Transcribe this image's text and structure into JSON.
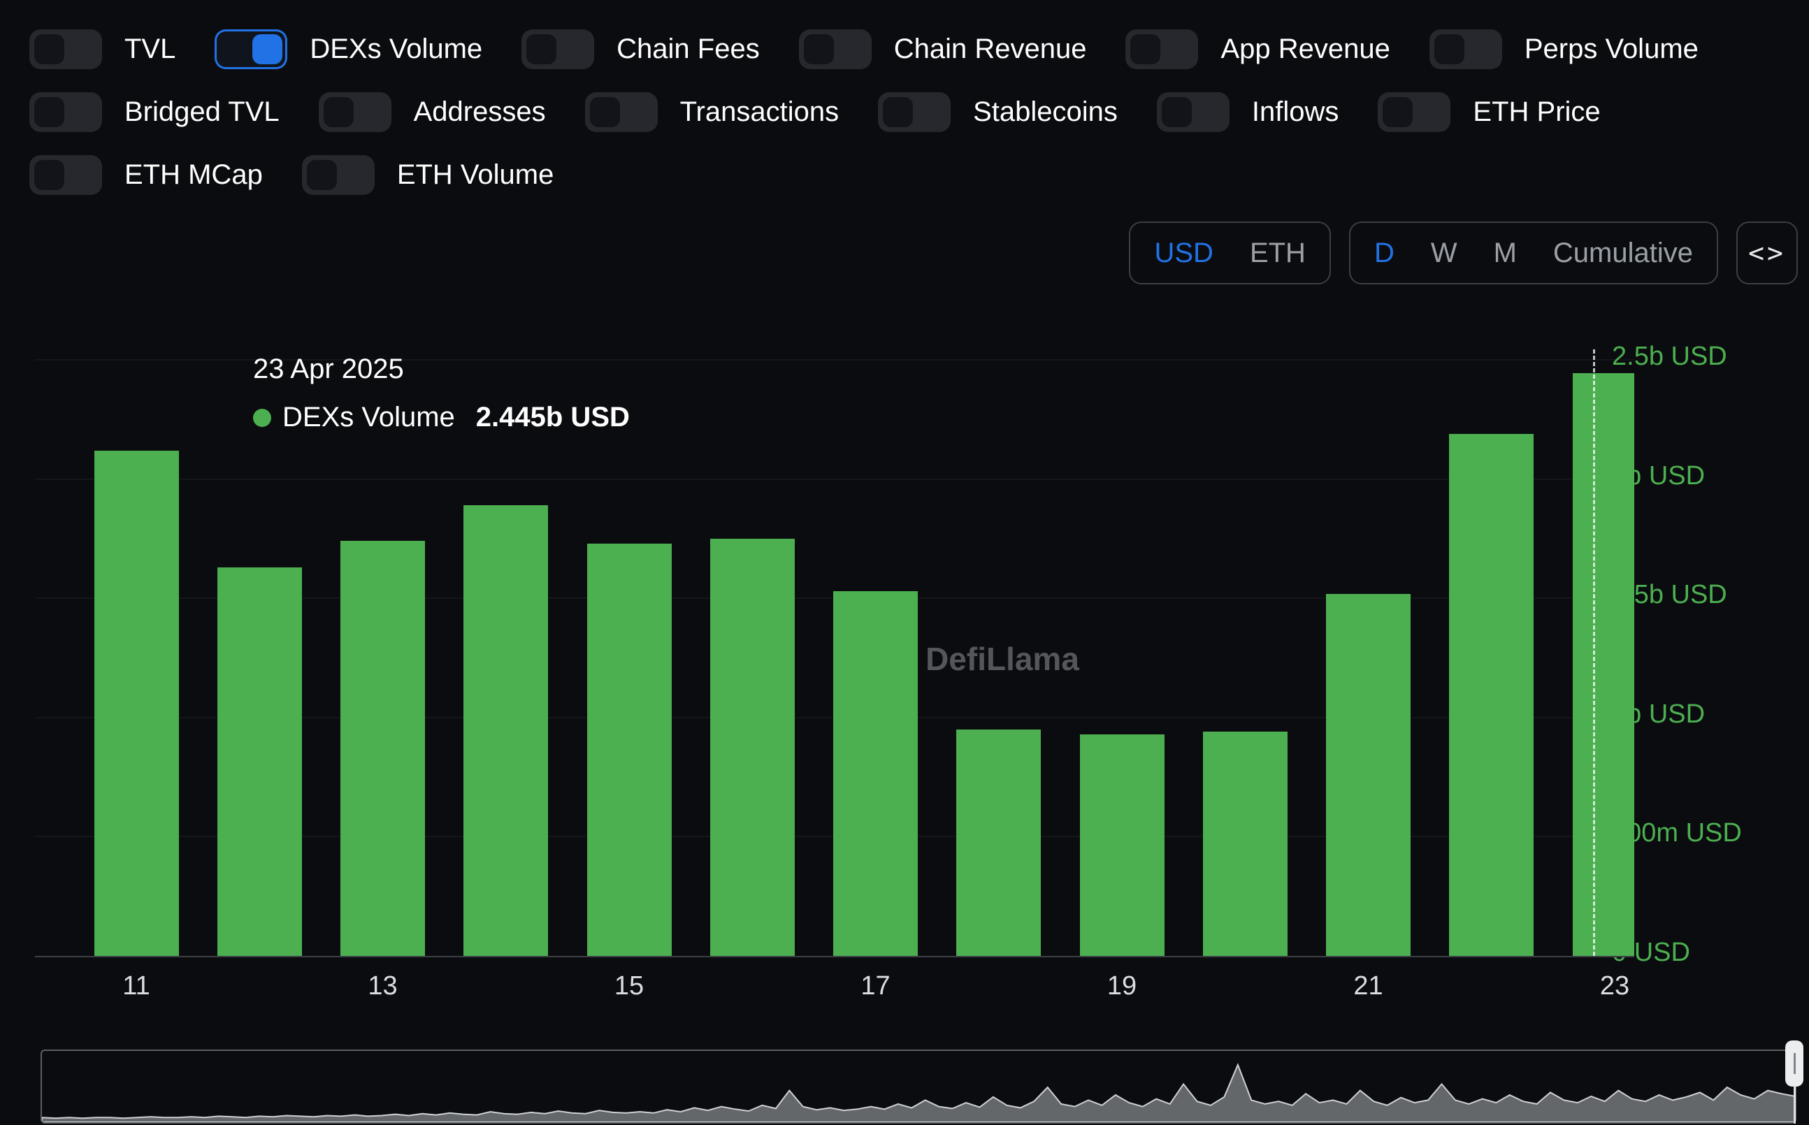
{
  "colors": {
    "background": "#0b0c0f",
    "accent_blue": "#2172e5",
    "series_green": "#4CAF50",
    "panel_border": "#3b3e44",
    "muted_text": "#9aa0a6"
  },
  "toggles": {
    "rows": [
      [
        {
          "label": "TVL",
          "on": false
        },
        {
          "label": "DEXs Volume",
          "on": true
        },
        {
          "label": "Chain Fees",
          "on": false
        },
        {
          "label": "Chain Revenue",
          "on": false
        },
        {
          "label": "App Revenue",
          "on": false
        },
        {
          "label": "Perps Volume",
          "on": false
        }
      ],
      [
        {
          "label": "Bridged TVL",
          "on": false
        },
        {
          "label": "Addresses",
          "on": false
        },
        {
          "label": "Transactions",
          "on": false
        },
        {
          "label": "Stablecoins",
          "on": false
        },
        {
          "label": "Inflows",
          "on": false
        },
        {
          "label": "ETH Price",
          "on": false
        }
      ],
      [
        {
          "label": "ETH MCap",
          "on": false
        },
        {
          "label": "ETH Volume",
          "on": false
        }
      ]
    ]
  },
  "controls": {
    "currency": {
      "options": [
        "USD",
        "ETH"
      ],
      "selected": "USD"
    },
    "interval": {
      "options": [
        "D",
        "W",
        "M",
        "Cumulative"
      ],
      "selected": "D"
    },
    "embed_icon": "<>"
  },
  "tooltip": {
    "date": "23 Apr 2025",
    "series": "DEXs Volume",
    "value": "2.445b USD"
  },
  "watermark": "DefiLlama",
  "chart_data": {
    "type": "bar",
    "title": "",
    "series_name": "DEXs Volume",
    "unit": "USD (billions)",
    "categories": [
      "11",
      "12",
      "13",
      "14",
      "15",
      "16",
      "17",
      "18",
      "19",
      "20",
      "21",
      "22",
      "23"
    ],
    "values_billion_usd": [
      2.12,
      1.63,
      1.74,
      1.89,
      1.73,
      1.75,
      1.53,
      0.95,
      0.93,
      0.94,
      1.52,
      2.19,
      2.445
    ],
    "x_tick_labels": [
      "11",
      "13",
      "15",
      "17",
      "19",
      "21",
      "23"
    ],
    "y_tick_labels": [
      "0 USD",
      "500m USD",
      "1b USD",
      "1.5b USD",
      "2b USD",
      "2.5b USD"
    ],
    "ylim": [
      0,
      2.5
    ],
    "grid": "faint-horizontal",
    "legend_position": "tooltip-only",
    "bar_color": "#4CAF50",
    "highlighted_category": "23",
    "highlighted_value_label": "2.445b USD"
  },
  "minimap": {
    "values": [
      0.03,
      0.02,
      0.03,
      0.02,
      0.03,
      0.03,
      0.02,
      0.03,
      0.04,
      0.03,
      0.03,
      0.04,
      0.03,
      0.05,
      0.04,
      0.03,
      0.05,
      0.04,
      0.06,
      0.05,
      0.04,
      0.06,
      0.05,
      0.07,
      0.05,
      0.06,
      0.08,
      0.06,
      0.09,
      0.07,
      0.1,
      0.08,
      0.07,
      0.12,
      0.09,
      0.08,
      0.11,
      0.09,
      0.13,
      0.1,
      0.09,
      0.14,
      0.11,
      0.1,
      0.12,
      0.1,
      0.15,
      0.12,
      0.18,
      0.14,
      0.2,
      0.16,
      0.13,
      0.22,
      0.17,
      0.45,
      0.2,
      0.15,
      0.18,
      0.14,
      0.16,
      0.2,
      0.16,
      0.24,
      0.18,
      0.3,
      0.2,
      0.17,
      0.26,
      0.19,
      0.35,
      0.22,
      0.18,
      0.28,
      0.5,
      0.24,
      0.2,
      0.3,
      0.22,
      0.38,
      0.26,
      0.2,
      0.32,
      0.24,
      0.55,
      0.28,
      0.22,
      0.35,
      0.85,
      0.3,
      0.24,
      0.28,
      0.22,
      0.4,
      0.26,
      0.3,
      0.24,
      0.45,
      0.28,
      0.22,
      0.34,
      0.26,
      0.3,
      0.55,
      0.3,
      0.24,
      0.32,
      0.26,
      0.38,
      0.28,
      0.24,
      0.42,
      0.3,
      0.26,
      0.36,
      0.28,
      0.45,
      0.32,
      0.28,
      0.38,
      0.3,
      0.35,
      0.42,
      0.3,
      0.5,
      0.38,
      0.32,
      0.45,
      0.4,
      0.36
    ]
  }
}
